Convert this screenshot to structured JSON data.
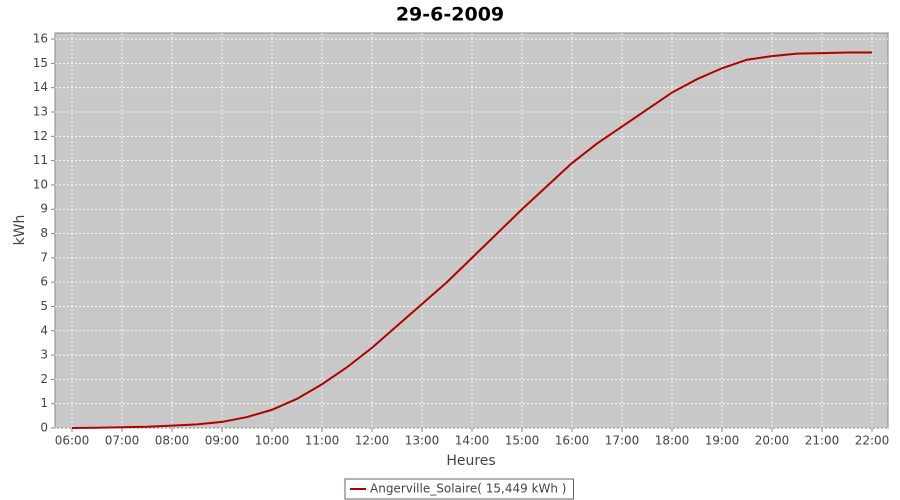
{
  "chart_data": {
    "type": "line",
    "title": "29-6-2009",
    "x_label": "Heures",
    "y_label": "kWh",
    "x": [
      6,
      6.5,
      7,
      7.5,
      8,
      8.5,
      9,
      9.5,
      10,
      10.5,
      11,
      11.5,
      12,
      12.5,
      13,
      13.5,
      14,
      14.5,
      15,
      15.5,
      16,
      16.5,
      17,
      17.5,
      18,
      18.5,
      19,
      19.5,
      20,
      20.5,
      21,
      21.5,
      22
    ],
    "series": [
      {
        "name": "Angerville_Solaire( 15,449 kWh )",
        "color": "#b00000",
        "values": [
          0,
          0.01,
          0.03,
          0.05,
          0.1,
          0.15,
          0.25,
          0.45,
          0.75,
          1.2,
          1.8,
          2.5,
          3.3,
          4.2,
          5.1,
          6.0,
          7.0,
          8.0,
          9.0,
          9.95,
          10.9,
          11.7,
          12.4,
          13.1,
          13.8,
          14.35,
          14.8,
          15.15,
          15.3,
          15.4,
          15.42,
          15.45,
          15.449
        ]
      }
    ],
    "xlim": [
      5.66,
      22.32
    ],
    "ylim": [
      0,
      16.25
    ],
    "xticks": [
      {
        "value": 6,
        "label": "06:00"
      },
      {
        "value": 7,
        "label": "07:00"
      },
      {
        "value": 8,
        "label": "08:00"
      },
      {
        "value": 9,
        "label": "09:00"
      },
      {
        "value": 10,
        "label": "10:00"
      },
      {
        "value": 11,
        "label": "11:00"
      },
      {
        "value": 12,
        "label": "12:00"
      },
      {
        "value": 13,
        "label": "13:00"
      },
      {
        "value": 14,
        "label": "14:00"
      },
      {
        "value": 15,
        "label": "15:00"
      },
      {
        "value": 16,
        "label": "16:00"
      },
      {
        "value": 17,
        "label": "17:00"
      },
      {
        "value": 18,
        "label": "18:00"
      },
      {
        "value": 19,
        "label": "19:00"
      },
      {
        "value": 20,
        "label": "20:00"
      },
      {
        "value": 21,
        "label": "21:00"
      },
      {
        "value": 22,
        "label": "22:00"
      }
    ],
    "yticks": [
      0,
      1,
      2,
      3,
      4,
      5,
      6,
      7,
      8,
      9,
      10,
      11,
      12,
      13,
      14,
      15,
      16
    ],
    "grid": true,
    "legend": "bottom",
    "plot_background": "#c8c8c8"
  }
}
